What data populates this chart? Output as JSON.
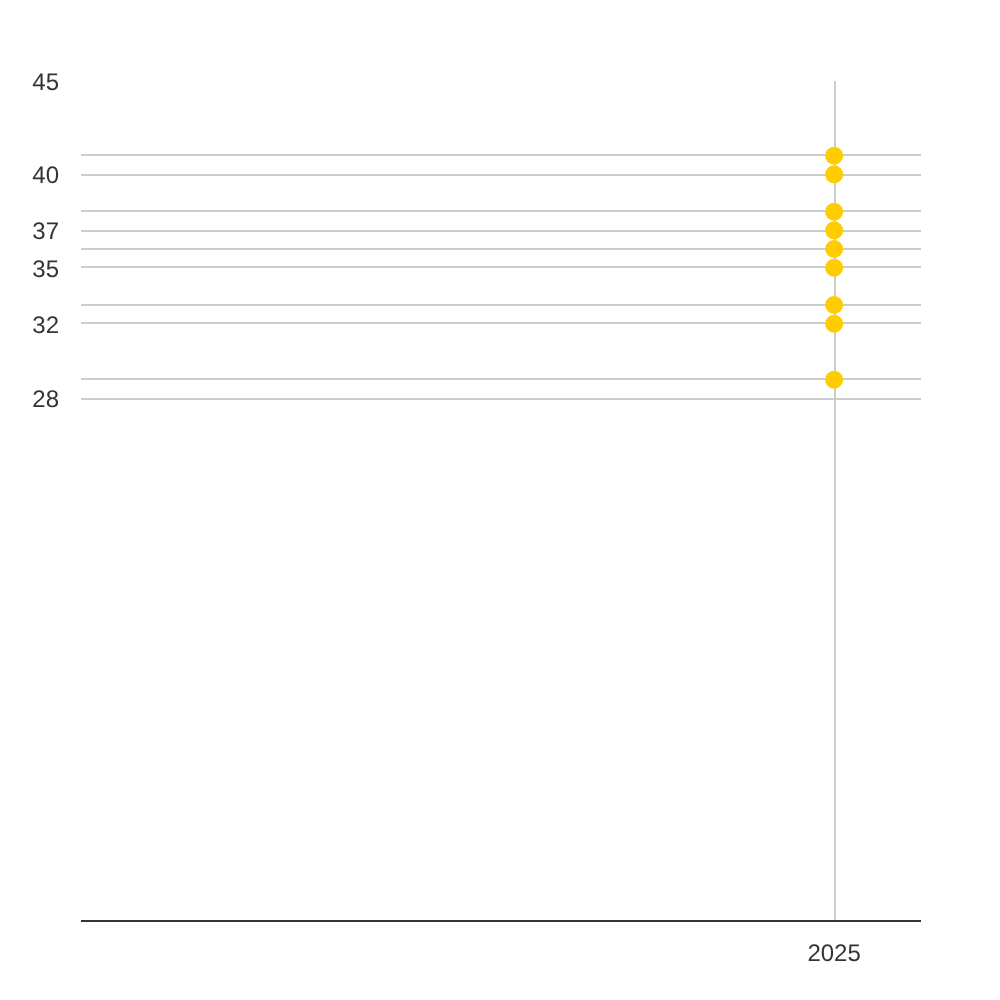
{
  "chart_data": {
    "type": "scatter",
    "categories": [
      "2025"
    ],
    "series": [
      {
        "values": [
          41
        ],
        "color": "#ffcc00"
      },
      {
        "values": [
          40
        ],
        "color": "#ffcc00"
      },
      {
        "values": [
          38
        ],
        "color": "#ffcc00"
      },
      {
        "values": [
          37
        ],
        "color": "#ffcc00"
      },
      {
        "values": [
          36
        ],
        "color": "#ffcc00"
      },
      {
        "values": [
          35
        ],
        "color": "#ffcc00"
      },
      {
        "values": [
          33
        ],
        "color": "#ffcc00"
      },
      {
        "values": [
          32
        ],
        "color": "#ffcc00"
      },
      {
        "values": [
          29
        ],
        "color": "#ffcc00"
      }
    ],
    "marker": "circle",
    "grid": true,
    "ylim": [
      0,
      45
    ],
    "yticks": [
      45,
      {
        "value": 41,
        "label": null
      },
      40,
      {
        "value": 38,
        "label": null
      },
      37,
      {
        "value": 36,
        "label": null
      },
      35,
      {
        "value": 33,
        "label": null
      },
      32,
      {
        "value": 29,
        "label": null
      },
      28
    ]
  }
}
